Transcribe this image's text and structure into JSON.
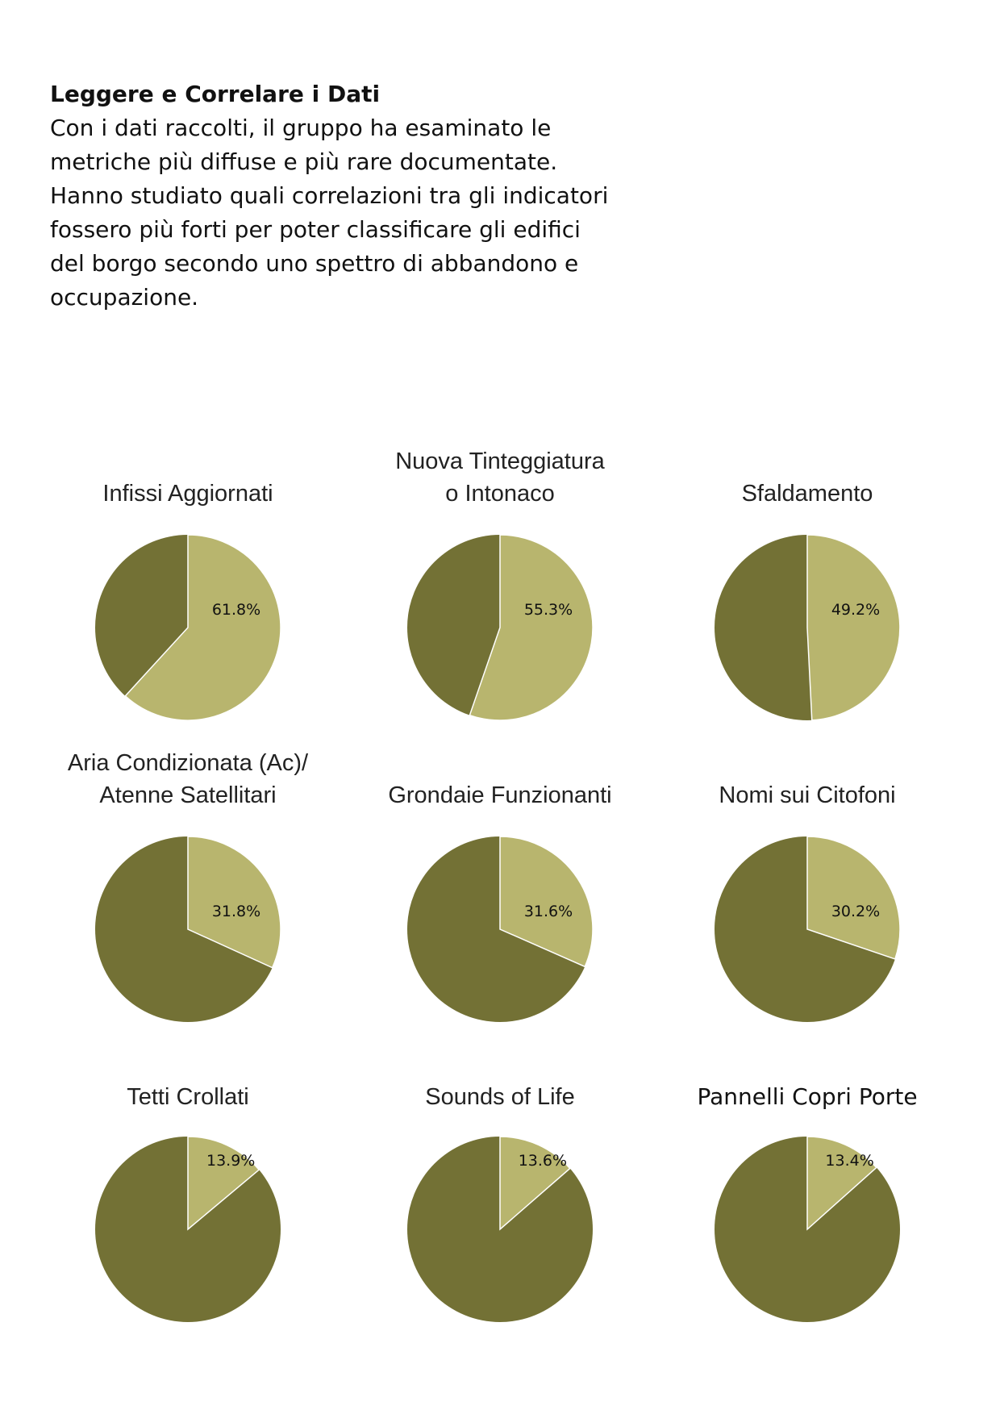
{
  "intro": {
    "heading": "Leggere e Correlare i Dati",
    "lines": [
      "Con i dati raccolti, il gruppo ha esaminato le",
      "metriche più diffuse e più rare documentate.",
      "Hanno studiato quali correlazioni tra gli indicatori",
      "fossero più forti per poter classificare gli edifici",
      "del borgo secondo uno spettro di abbandono e",
      "occupazione."
    ]
  },
  "colors": {
    "present": "#b8b56e",
    "absent": "#737135",
    "separator": "#ffffff"
  },
  "chart_data": [
    {
      "type": "pie",
      "title": [
        "Infissi Aggiornati"
      ],
      "value": 61.8,
      "label": "61.8%"
    },
    {
      "type": "pie",
      "title": [
        "Nuova Tinteggiatura",
        "o Intonaco"
      ],
      "value": 55.3,
      "label": "55.3%"
    },
    {
      "type": "pie",
      "title": [
        "Sfaldamento"
      ],
      "value": 49.2,
      "label": "49.2%"
    },
    {
      "type": "pie",
      "title": [
        "Aria Condizionata (Ac)/",
        "Atenne Satellitari"
      ],
      "value": 31.8,
      "label": "31.8%"
    },
    {
      "type": "pie",
      "title": [
        "Grondaie Funzionanti"
      ],
      "value": 31.6,
      "label": "31.6%"
    },
    {
      "type": "pie",
      "title": [
        "Nomi sui Citofoni"
      ],
      "value": 30.2,
      "label": "30.2%"
    },
    {
      "type": "pie",
      "title": [
        "Tetti Crollati"
      ],
      "value": 13.9,
      "label": "13.9%"
    },
    {
      "type": "pie",
      "title": [
        "Sounds of Life"
      ],
      "value": 13.6,
      "label": "13.6%"
    },
    {
      "type": "pie",
      "title": [
        "Pannelli Copri Porte"
      ],
      "value": 13.4,
      "label": "13.4%",
      "title_emphasis": true
    }
  ]
}
